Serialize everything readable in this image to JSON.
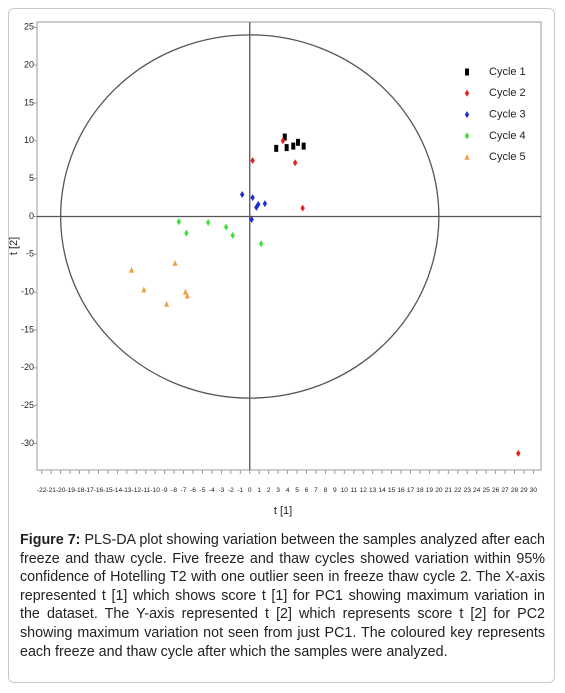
{
  "chart_data": {
    "type": "scatter",
    "x_label": "t [1]",
    "y_label": "t [2]",
    "xlim": [
      -22.5,
      30.8
    ],
    "ylim": [
      -33.5,
      25.7
    ],
    "xticks": [
      -22,
      -21,
      -20,
      -19,
      -18,
      -17,
      -16,
      -15,
      -14,
      -13,
      -12,
      -11,
      -10,
      -9,
      -8,
      -7,
      -6,
      -5,
      -4,
      -3,
      -2,
      -1,
      0,
      1,
      2,
      3,
      4,
      5,
      6,
      7,
      8,
      9,
      10,
      11,
      12,
      13,
      14,
      15,
      16,
      17,
      18,
      19,
      20,
      21,
      22,
      23,
      24,
      25,
      26,
      27,
      28,
      29,
      30
    ],
    "yticks": [
      25,
      20,
      15,
      10,
      5,
      0,
      -5,
      -10,
      -15,
      -20,
      -25,
      -30
    ],
    "grid": false,
    "legend": "upper right",
    "ellipse": {
      "rx": 20,
      "ry": 24
    },
    "series": [
      {
        "name": "Cycle 1",
        "color": "#000000",
        "marker": "square",
        "x": [
          2.8,
          3.7,
          3.9,
          4.6,
          5.1,
          5.7
        ],
        "values": [
          9.0,
          10.5,
          9.1,
          9.3,
          9.8,
          9.3
        ]
      },
      {
        "name": "Cycle 2",
        "color": "#e8201c",
        "marker": "diamond",
        "x": [
          0.3,
          3.5,
          4.8,
          5.6,
          28.4
        ],
        "values": [
          7.4,
          10.0,
          7.1,
          1.1,
          -31.3
        ]
      },
      {
        "name": "Cycle 3",
        "color": "#1d2fd6",
        "marker": "diamond",
        "x": [
          -0.8,
          0.3,
          0.7,
          0.9,
          1.6,
          0.2
        ],
        "values": [
          2.9,
          2.5,
          1.2,
          1.6,
          1.7,
          -0.4
        ]
      },
      {
        "name": "Cycle 4",
        "color": "#3ee03a",
        "marker": "diamond",
        "x": [
          -7.5,
          -6.7,
          -4.4,
          -2.5,
          -1.8,
          1.2
        ],
        "values": [
          -0.7,
          -2.2,
          -0.8,
          -1.4,
          -2.5,
          -3.6
        ]
      },
      {
        "name": "Cycle 5",
        "color": "#f0a040",
        "marker": "triangle",
        "x": [
          -12.5,
          -11.2,
          -7.9,
          -6.8,
          -6.6,
          -8.8
        ],
        "values": [
          -7.1,
          -9.7,
          -6.2,
          -10.0,
          -10.5,
          -11.6
        ]
      }
    ]
  },
  "caption": {
    "label": "Figure 7:",
    "text": "PLS-DA plot showing variation between the samples analyzed after each freeze and thaw cycle. Five freeze and thaw cycles showed variation within 95% confidence of Hotelling T2 with one outlier seen in freeze thaw cycle 2. The X-axis represented t [1] which shows score t [1] for PC1 showing maximum variation in the dataset. The Y-axis represented t [2] which represents score t [2] for PC2 showing maximum variation not seen from just PC1. The coloured key represents each freeze and thaw cycle after which the samples were analyzed."
  }
}
